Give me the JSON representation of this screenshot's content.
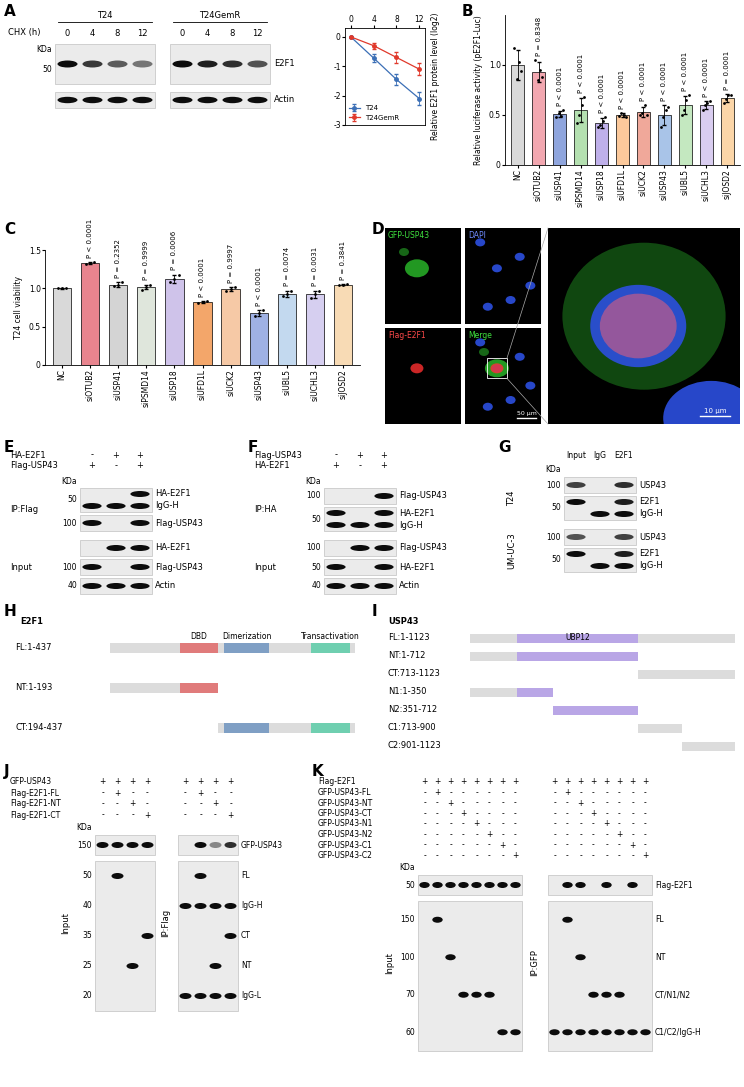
{
  "panel_letters": [
    "A",
    "B",
    "C",
    "D",
    "E",
    "F",
    "G",
    "H",
    "I",
    "J",
    "K"
  ],
  "chart_data": [
    {
      "type": "line",
      "ylabel": "Relative E2F1 protein level (log2)",
      "x": [
        0,
        4,
        8,
        12
      ],
      "xlim": [
        -1,
        13
      ],
      "xticks": [
        0,
        4,
        8,
        12
      ],
      "ylim": [
        -3,
        0.3
      ],
      "yticks": [
        0,
        -1,
        -2,
        -3
      ],
      "legend": "lower left",
      "series": [
        {
          "name": "T24",
          "color": "#3b6fb6",
          "marker": "circle",
          "values": [
            0,
            -0.72,
            -1.45,
            -2.1
          ],
          "error": [
            0,
            0.12,
            0.2,
            0.22
          ]
        },
        {
          "name": "T24GemR",
          "color": "#e0392b",
          "marker": "circle",
          "values": [
            0,
            -0.3,
            -0.7,
            -1.1
          ],
          "error": [
            0,
            0.1,
            0.2,
            0.2
          ]
        }
      ]
    },
    {
      "type": "bar",
      "ylabel": "Relative luciferase activity (pE2F1-Luc)",
      "categories": [
        "NC",
        "siOTUB2",
        "siUSP41",
        "siPSMD14",
        "siUSP18",
        "siUFD1L",
        "siUCK2",
        "siUSP43",
        "siUBL5",
        "siUCHL3",
        "siJOSD2"
      ],
      "values": [
        1.0,
        0.93,
        0.51,
        0.55,
        0.42,
        0.5,
        0.53,
        0.5,
        0.6,
        0.6,
        0.67
      ],
      "error": [
        0.15,
        0.1,
        0.03,
        0.12,
        0.05,
        0.02,
        0.05,
        0.1,
        0.09,
        0.04,
        0.04
      ],
      "points": [
        [
          1.17,
          0.86,
          1.03,
          0.94
        ],
        [
          1.05,
          0.85,
          0.95,
          0.88
        ],
        [
          0.48,
          0.52,
          0.49,
          0.55
        ],
        [
          0.42,
          0.5,
          0.6,
          0.68
        ],
        [
          0.38,
          0.4,
          0.44,
          0.48
        ],
        [
          0.49,
          0.52,
          0.5,
          0.48
        ],
        [
          0.5,
          0.52,
          0.6,
          0.5
        ],
        [
          0.38,
          0.48,
          0.55,
          0.58
        ],
        [
          0.5,
          0.55,
          0.65,
          0.7
        ],
        [
          0.55,
          0.6,
          0.62,
          0.64
        ],
        [
          0.62,
          0.66,
          0.7,
          0.7
        ]
      ],
      "colors": [
        "#d9d9d9",
        "#f2a7b0",
        "#8fa5dd",
        "#b4e0b0",
        "#bfb0ea",
        "#fcc99b",
        "#f0a89a",
        "#a9c4e8",
        "#c4e8c0",
        "#d9cdf0",
        "#fcd6a8"
      ],
      "annotations": [
        null,
        "P = 0.8348",
        "P < 0.0001",
        "P < 0.0001",
        "P < 0.0001",
        "P < 0.0001",
        "P < 0.0001",
        "P < 0.0001",
        "P < 0.0001",
        "P < 0.0001",
        "P = 0.0001"
      ],
      "ylim": [
        0,
        1.5
      ],
      "yticks": [
        0,
        0.5,
        1.0
      ]
    },
    {
      "type": "bar",
      "ylabel": "T24 cell viability",
      "categories": [
        "NC",
        "siOTUB2",
        "siUSP41",
        "siPSMD14",
        "siUSP18",
        "siUFD1L",
        "siUCK2",
        "siUSP43",
        "siUBL5",
        "siUCHL3",
        "siJOSD2"
      ],
      "values": [
        1.0,
        1.33,
        1.05,
        1.02,
        1.12,
        0.82,
        0.99,
        0.68,
        0.93,
        0.92,
        1.05
      ],
      "error": [
        0.01,
        0.01,
        0.03,
        0.03,
        0.05,
        0.01,
        0.03,
        0.04,
        0.04,
        0.05,
        0.01
      ],
      "points": [
        [
          1.0,
          1.0,
          1.0
        ],
        [
          1.32,
          1.33,
          1.34
        ],
        [
          1.03,
          1.05,
          1.08
        ],
        [
          0.98,
          1.02,
          1.05
        ],
        [
          1.08,
          1.12,
          1.18
        ],
        [
          0.81,
          0.82,
          0.83
        ],
        [
          0.96,
          0.99,
          1.02
        ],
        [
          0.64,
          0.68,
          0.72
        ],
        [
          0.9,
          0.93,
          0.97
        ],
        [
          0.88,
          0.92,
          0.97
        ],
        [
          1.04,
          1.05,
          1.06
        ]
      ],
      "colors": [
        "#d9d9d9",
        "#e8848e",
        "#d4d4d4",
        "#dfe6dc",
        "#cfc3ea",
        "#f3a66a",
        "#f6c9a6",
        "#9fb1e4",
        "#c3d9ef",
        "#d6cff0",
        "#f8dbb5"
      ],
      "annotations": [
        null,
        "P < 0.0001",
        "P = 0.2352",
        "P = 0.9999",
        "P = 0.0006",
        "P < 0.0001",
        "P = 0.9997",
        "P < 0.0001",
        "P = 0.0074",
        "P = 0.0031",
        "P = 0.3841"
      ],
      "ylim": [
        0,
        1.5
      ],
      "yticks": [
        0,
        0.5,
        1.0,
        1.5
      ]
    }
  ],
  "microscopy": {
    "channels": [
      "GFP-USP43",
      "DAPI",
      "Flag-E2F1",
      "Merge"
    ],
    "scale_bars": [
      "50 μm",
      "10 μm"
    ]
  },
  "blots": {
    "A": {
      "groups": [
        "T24",
        "T24GemR"
      ],
      "row_label": "CHX (h)",
      "lanes": [
        "0",
        "4",
        "8",
        "12"
      ],
      "kda_label": "KDa",
      "strips": [
        {
          "label": "E2F1",
          "kda": [
            "50"
          ]
        },
        {
          "label": "Actin",
          "kda": []
        }
      ]
    },
    "E": {
      "kda_label": "KDa",
      "header": [
        {
          "name": "HA-E2F1",
          "signs": [
            "-",
            "+",
            "+"
          ]
        },
        {
          "name": "Flag-USP43",
          "signs": [
            "+",
            "-",
            "+"
          ]
        }
      ],
      "sections": [
        {
          "label": "IP:Flag",
          "strips": [
            {
              "right": [
                "HA-E2F1",
                "IgG-H"
              ],
              "kda": [
                "50"
              ]
            },
            {
              "right": [
                "Flag-USP43"
              ],
              "kda": [
                "100"
              ]
            }
          ]
        },
        {
          "label": "Input",
          "strips": [
            {
              "right": [
                "HA-E2F1"
              ],
              "kda": []
            },
            {
              "right": [
                "Flag-USP43"
              ],
              "kda": [
                "100"
              ]
            },
            {
              "right": [
                "Actin"
              ],
              "kda": [
                "40"
              ]
            }
          ]
        }
      ]
    },
    "F": {
      "kda_label": "KDa",
      "header": [
        {
          "name": "Flag-USP43",
          "signs": [
            "-",
            "+",
            "+"
          ]
        },
        {
          "name": "HA-E2F1",
          "signs": [
            "+",
            "-",
            "+"
          ]
        }
      ],
      "sections": [
        {
          "label": "IP:HA",
          "strips": [
            {
              "right": [
                "Flag-USP43"
              ],
              "kda": [
                "100"
              ]
            },
            {
              "right": [
                "HA-E2F1",
                "IgG-H"
              ],
              "kda": [
                "50"
              ]
            }
          ]
        },
        {
          "label": "Input",
          "strips": [
            {
              "right": [
                "Flag-USP43"
              ],
              "kda": [
                "100"
              ]
            },
            {
              "right": [
                "HA-E2F1"
              ],
              "kda": [
                "50"
              ]
            },
            {
              "right": [
                "Actin"
              ],
              "kda": [
                "40"
              ]
            }
          ]
        }
      ]
    },
    "G": {
      "kda_label": "KDa",
      "columns": [
        "Input",
        "IgG",
        "E2F1"
      ],
      "sections": [
        {
          "label": "T24",
          "strips": [
            {
              "right": [
                "USP43"
              ],
              "kda": [
                "100"
              ]
            },
            {
              "right": [
                "E2F1",
                "IgG-H"
              ],
              "kda": [
                "50"
              ]
            }
          ]
        },
        {
          "label": "UM-UC-3",
          "strips": [
            {
              "right": [
                "USP43"
              ],
              "kda": [
                "100"
              ]
            },
            {
              "right": [
                "E2F1",
                "IgG-H"
              ],
              "kda": [
                "50"
              ]
            }
          ]
        }
      ]
    },
    "J": {
      "kda_label": "KDa",
      "header": [
        {
          "name": "GFP-USP43",
          "signs": [
            "+",
            "+",
            "+",
            "+"
          ]
        },
        {
          "name": "Flag-E2F1-FL",
          "signs": [
            "-",
            "+",
            "-",
            "-"
          ]
        },
        {
          "name": "Flag-E2F1-NT",
          "signs": [
            "-",
            "-",
            "+",
            "-"
          ]
        },
        {
          "name": "Flag-E2F1-CT",
          "signs": [
            "-",
            "-",
            "-",
            "+"
          ]
        }
      ],
      "sections": [
        {
          "label": "Input",
          "strips": [
            {
              "right": [],
              "kda": [
                "150"
              ]
            },
            {
              "right": [],
              "kda": [
                "50",
                "40",
                "35",
                "25",
                "20"
              ]
            }
          ]
        },
        {
          "label": "IP:Flag",
          "strips": [
            {
              "right": [
                "GFP-USP43"
              ],
              "kda": []
            },
            {
              "right": [
                "FL",
                "IgG-H",
                "CT",
                "NT",
                "IgG-L"
              ],
              "kda": []
            }
          ]
        }
      ]
    },
    "K": {
      "kda_label": "KDa",
      "header": [
        {
          "name": "Flag-E2F1",
          "signs": [
            "+",
            "+",
            "+",
            "+",
            "+",
            "+",
            "+",
            "+"
          ]
        },
        {
          "name": "GFP-USP43-FL",
          "signs": [
            "-",
            "+",
            "-",
            "-",
            "-",
            "-",
            "-",
            "-"
          ]
        },
        {
          "name": "GFP-USP43-NT",
          "signs": [
            "-",
            "-",
            "+",
            "-",
            "-",
            "-",
            "-",
            "-"
          ]
        },
        {
          "name": "GFP-USP43-CT",
          "signs": [
            "-",
            "-",
            "-",
            "+",
            "-",
            "-",
            "-",
            "-"
          ]
        },
        {
          "name": "GFP-USP43-N1",
          "signs": [
            "-",
            "-",
            "-",
            "-",
            "+",
            "-",
            "-",
            "-"
          ]
        },
        {
          "name": "GFP-USP43-N2",
          "signs": [
            "-",
            "-",
            "-",
            "-",
            "-",
            "+",
            "-",
            "-"
          ]
        },
        {
          "name": "GFP-USP43-C1",
          "signs": [
            "-",
            "-",
            "-",
            "-",
            "-",
            "-",
            "+",
            "-"
          ]
        },
        {
          "name": "GFP-USP43-C2",
          "signs": [
            "-",
            "-",
            "-",
            "-",
            "-",
            "-",
            "-",
            "+"
          ]
        }
      ],
      "sections": [
        {
          "label": "Input",
          "strips": [
            {
              "right": [],
              "kda": [
                "50"
              ]
            },
            {
              "right": [],
              "kda": [
                "150",
                "100",
                "70",
                "60"
              ]
            }
          ]
        },
        {
          "label": "IP:GFP",
          "strips": [
            {
              "right": [
                "Flag-E2F1"
              ],
              "kda": []
            },
            {
              "right": [
                "FL",
                "NT",
                "CT/N1/N2",
                "C1/C2/IgG-H"
              ],
              "kda": []
            }
          ]
        }
      ]
    }
  },
  "diagrams": {
    "H": {
      "protein": "E2F1",
      "length": 437,
      "domains": [
        {
          "name": "DBD",
          "start": 125,
          "end": 193,
          "color": "#e07b7b"
        },
        {
          "name": "Dimerization",
          "start": 204,
          "end": 284,
          "color": "#7f9fc4"
        },
        {
          "name": "Transactivation",
          "start": 360,
          "end": 428,
          "color": "#6fcfb0"
        }
      ],
      "constructs": [
        {
          "label": "FL:1-437",
          "start": 1,
          "end": 437
        },
        {
          "label": "NT:1-193",
          "start": 1,
          "end": 193
        },
        {
          "label": "CT:194-437",
          "start": 194,
          "end": 437
        }
      ]
    },
    "I": {
      "protein": "USP43",
      "length": 1123,
      "domains": [
        {
          "name": "UBP12",
          "start": 200,
          "end": 712,
          "color": "#b9a6e6"
        }
      ],
      "constructs": [
        {
          "label": "FL:1-1123",
          "start": 1,
          "end": 1123
        },
        {
          "label": "NT:1-712",
          "start": 1,
          "end": 712
        },
        {
          "label": "CT:713-1123",
          "start": 713,
          "end": 1123
        },
        {
          "label": "N1:1-350",
          "start": 1,
          "end": 350
        },
        {
          "label": "N2:351-712",
          "start": 351,
          "end": 712
        },
        {
          "label": "C1:713-900",
          "start": 713,
          "end": 900
        },
        {
          "label": "C2:901-1123",
          "start": 901,
          "end": 1123
        }
      ]
    }
  }
}
